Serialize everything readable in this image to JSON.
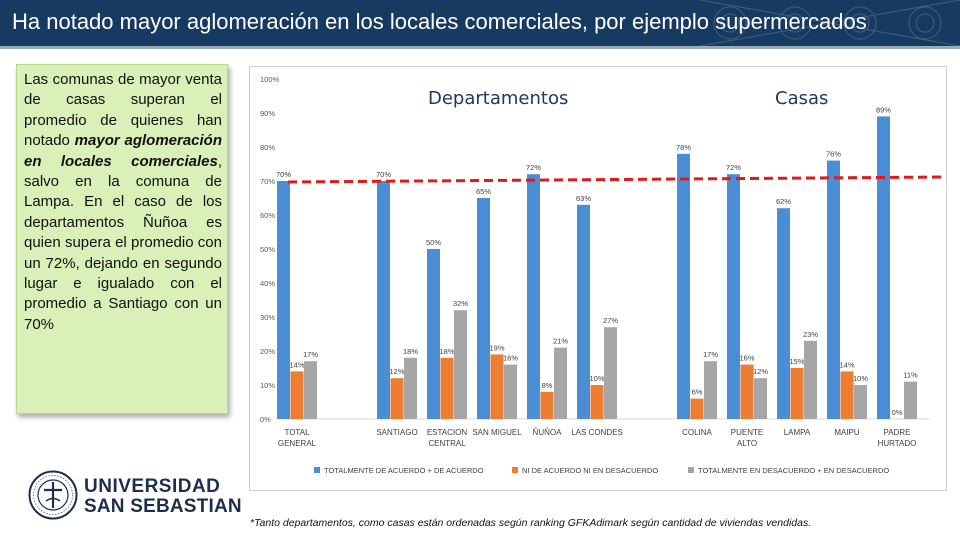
{
  "slide": {
    "title": "Ha notado mayor aglomeración en los locales comerciales, por ejemplo supermercados",
    "footnote": "*Tanto departamentos, como casas están ordenadas según ranking GFKAdimark según cantidad de viviendas vendidas."
  },
  "textbox": {
    "part1": "Las comunas de mayor venta de casas superan el promedio de quienes han notado ",
    "emphasis": "mayor aglomeración en locales comerciales",
    "part2": ", salvo en la comuna de Lampa. En el caso de los departamentos Ñuñoa es quien supera el promedio con un 72%, dejando en segundo lugar e igualado con el promedio a Santiago con un 70%"
  },
  "logo": {
    "line1": "UNIVERSIDAD",
    "line2": "SAN SEBASTIAN"
  },
  "colors": {
    "header_bg": "#173a63",
    "textbox_bg": "#d9f0b8",
    "series_blue": "#4a8fd6",
    "series_orange": "#ed7d31",
    "series_gray": "#a6a6a6",
    "average_line": "#e0191b",
    "group_label": "#203864"
  },
  "chart_data": {
    "type": "bar",
    "groups": [
      "Departamentos",
      "Casas"
    ],
    "categories": [
      [
        "TOTAL",
        "GENERAL"
      ],
      [
        "SANTIAGO"
      ],
      [
        "ESTACION",
        "CENTRAL"
      ],
      [
        "SAN MIGUEL"
      ],
      [
        "ÑUÑOA"
      ],
      [
        "LAS CONDES"
      ],
      [
        "COLINA"
      ],
      [
        "PUENTE",
        "ALTO"
      ],
      [
        "LAMPA"
      ],
      [
        "MAIPU"
      ],
      [
        "PADRE",
        "HURTADO"
      ]
    ],
    "series": [
      {
        "name": "TOTALMENTE DE ACUERDO + DE ACUERDO",
        "values": [
          70,
          70,
          50,
          65,
          72,
          63,
          78,
          72,
          62,
          76,
          89
        ]
      },
      {
        "name": "NI DE ACUERDO NI EN DESACUERDO",
        "values": [
          14,
          12,
          18,
          19,
          8,
          10,
          6,
          16,
          15,
          14,
          0
        ]
      },
      {
        "name": "TOTALMENTE EN DESACUERDO + EN DESACUERDO",
        "values": [
          17,
          18,
          32,
          16,
          21,
          27,
          17,
          12,
          23,
          10,
          11
        ]
      }
    ],
    "yticks": [
      "0%",
      "10%",
      "20%",
      "30%",
      "40%",
      "50%",
      "60%",
      "70%",
      "80%",
      "90%",
      "100%"
    ],
    "ylim": [
      0,
      100
    ],
    "average_line": 70,
    "legend_position": "bottom"
  }
}
